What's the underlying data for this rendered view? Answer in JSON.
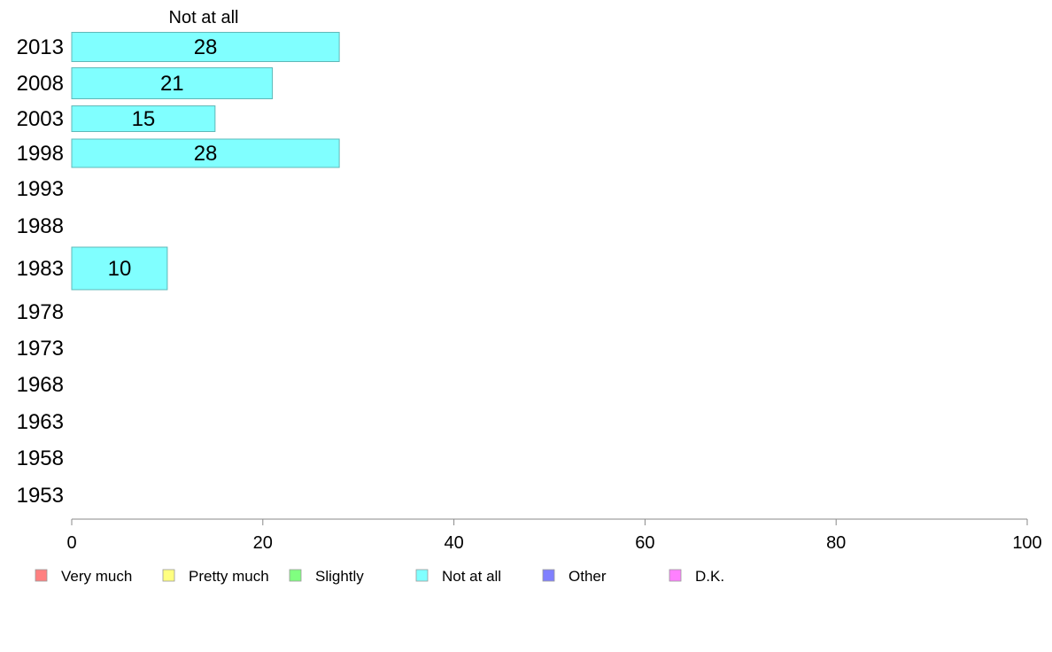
{
  "chart_data": {
    "type": "bar",
    "orientation": "horizontal",
    "title": "Not at all",
    "categories": [
      "2013",
      "2008",
      "2003",
      "1998",
      "1993",
      "1988",
      "1983",
      "1978",
      "1973",
      "1968",
      "1963",
      "1958",
      "1953"
    ],
    "series": [
      {
        "name": "Not at all",
        "color": "#80ffff",
        "values": [
          28,
          21,
          15,
          28,
          null,
          null,
          10,
          null,
          null,
          null,
          null,
          null,
          null
        ],
        "labels": [
          "28",
          "21",
          "15",
          "28",
          "",
          "",
          "10",
          "",
          "",
          "",
          "",
          "",
          ""
        ]
      }
    ],
    "xlim": [
      0,
      100
    ],
    "xticks": [
      "0",
      "20",
      "40",
      "60",
      "80",
      "100"
    ],
    "grid": false,
    "legend_position": "bottom",
    "legend": [
      {
        "label": "Very much",
        "color": "#ff8080"
      },
      {
        "label": "Pretty much",
        "color": "#ffff80"
      },
      {
        "label": "Slightly",
        "color": "#80ff80"
      },
      {
        "label": "Not at all",
        "color": "#80ffff"
      },
      {
        "label": "Other",
        "color": "#8080ff"
      },
      {
        "label": "D.K.",
        "color": "#ff80ff"
      }
    ]
  }
}
